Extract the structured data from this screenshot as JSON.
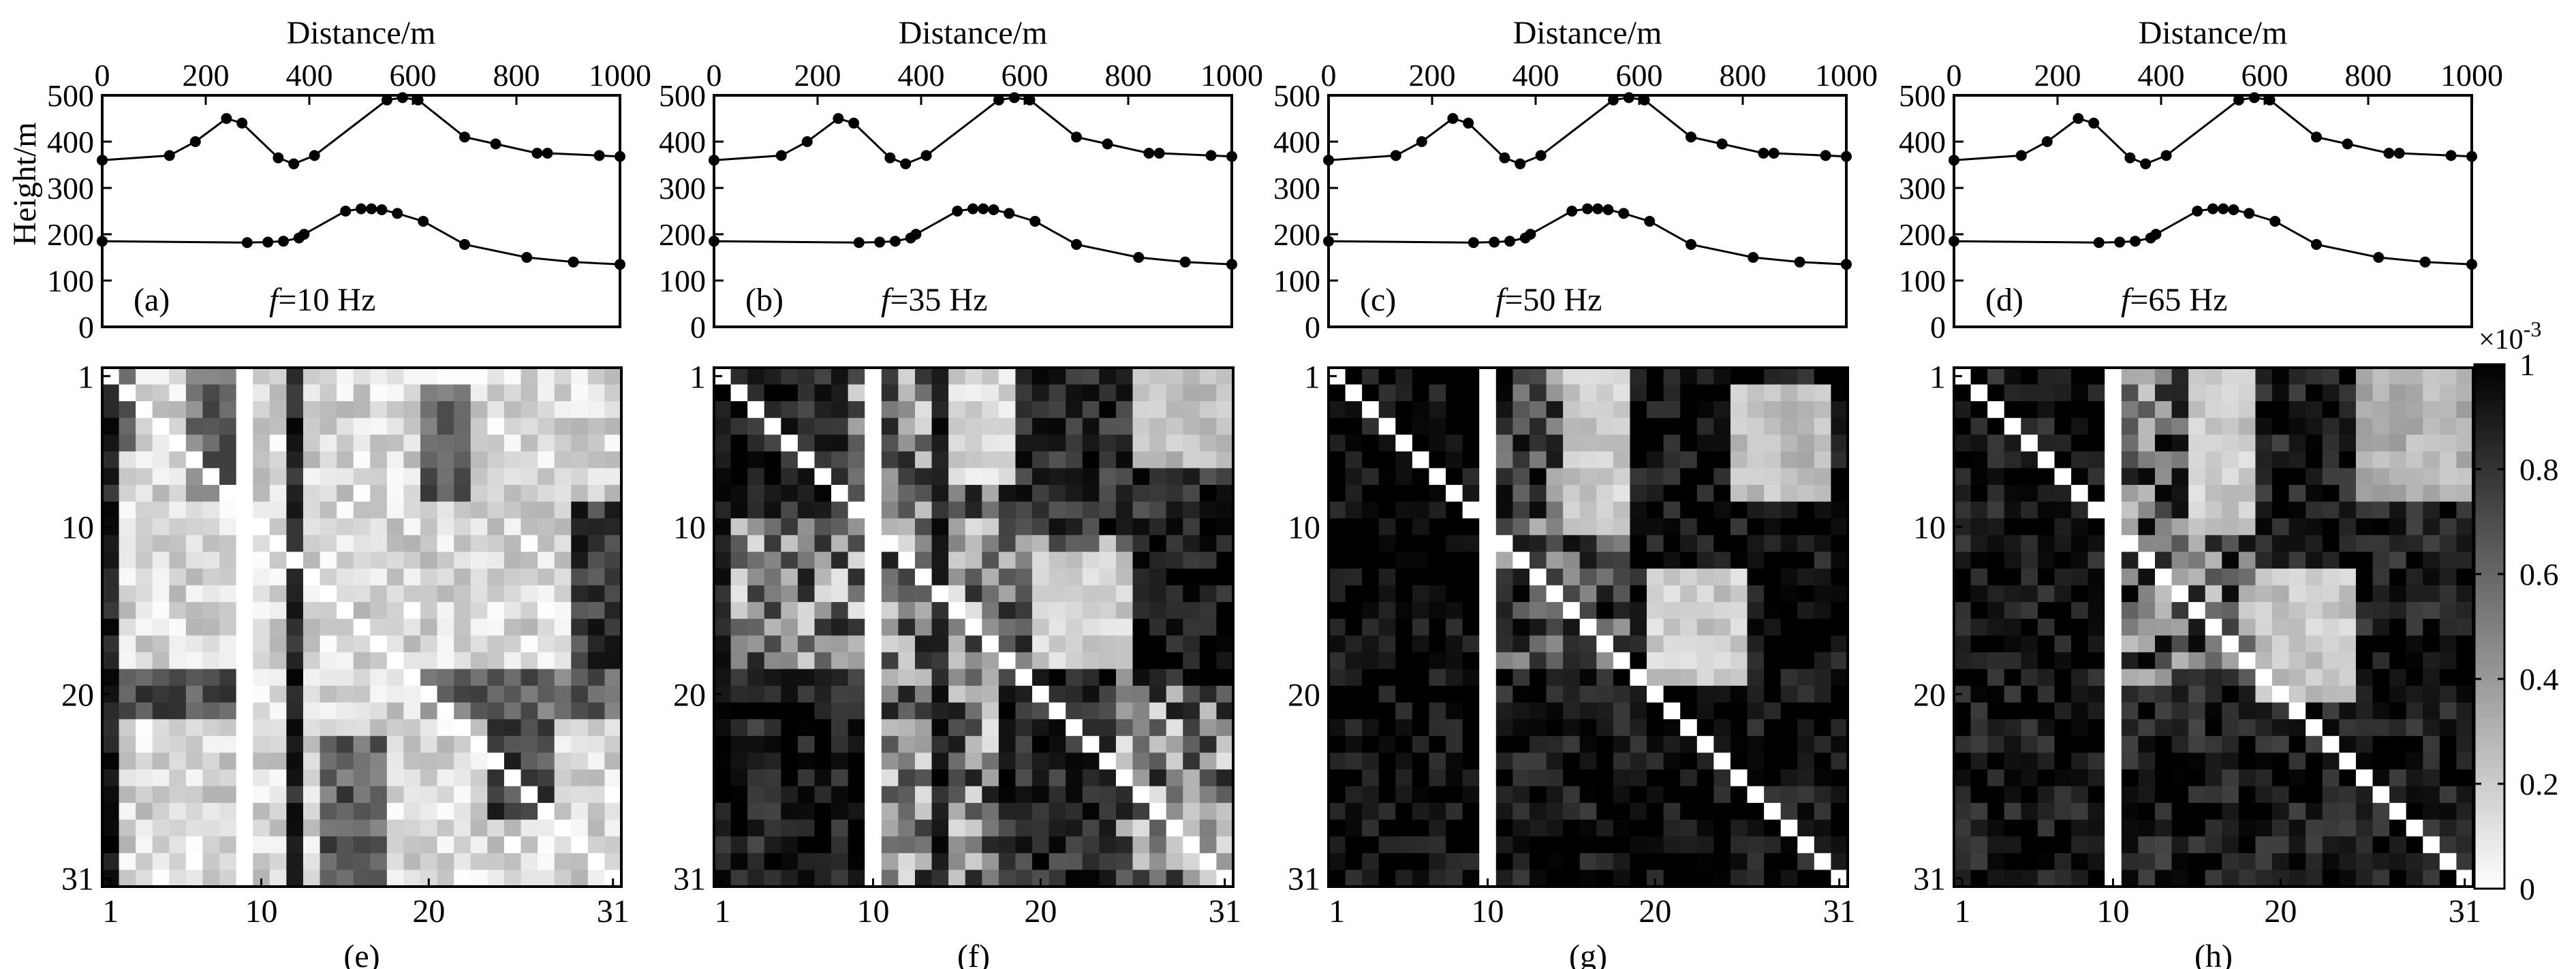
{
  "figure": {
    "x_axis_label": "Distance/m",
    "y_axis_label": "Height/m",
    "profile_x_ticks": [
      "0",
      "200",
      "400",
      "600",
      "800",
      "1000"
    ],
    "profile_y_ticks": [
      "0",
      "100",
      "200",
      "300",
      "400",
      "500"
    ],
    "matrix_ticks": [
      "1",
      "10",
      "20",
      "31"
    ],
    "colorbar": {
      "exponent_label": "×10",
      "exponent_power": "-3",
      "ticks": [
        "0",
        "0.2",
        "0.4",
        "0.6",
        "0.8",
        "1"
      ],
      "range": [
        0,
        1
      ],
      "colormap": "white-to-black",
      "low_color": "#ffffff",
      "high_color": "#000000"
    }
  },
  "chart_data": [
    {
      "type": "line",
      "panel": "(a)",
      "freq_prefix": "f",
      "freq_value": "=10 Hz",
      "xlim": [
        0,
        1000
      ],
      "ylim": [
        0,
        500
      ],
      "series": [
        {
          "x": [
            0,
            130,
            180,
            240,
            270,
            340,
            370,
            410,
            550,
            580,
            610,
            700,
            760,
            840,
            860,
            960,
            1000
          ],
          "y": [
            360,
            370,
            400,
            450,
            440,
            365,
            352,
            370,
            490,
            495,
            490,
            410,
            395,
            375,
            375,
            370,
            368
          ]
        },
        {
          "x": [
            0,
            280,
            320,
            350,
            380,
            390,
            470,
            500,
            520,
            540,
            570,
            620,
            700,
            820,
            910,
            1000
          ],
          "y": [
            185,
            182,
            183,
            185,
            192,
            200,
            250,
            255,
            255,
            253,
            245,
            228,
            178,
            150,
            140,
            135
          ]
        }
      ]
    },
    {
      "type": "line",
      "panel": "(b)",
      "freq_prefix": "f",
      "freq_value": "=35 Hz",
      "xlim": [
        0,
        1000
      ],
      "ylim": [
        0,
        500
      ],
      "series": [
        {
          "x": [
            0,
            130,
            180,
            240,
            270,
            340,
            370,
            410,
            550,
            580,
            610,
            700,
            760,
            840,
            860,
            960,
            1000
          ],
          "y": [
            360,
            370,
            400,
            450,
            440,
            365,
            352,
            370,
            490,
            495,
            490,
            410,
            395,
            375,
            375,
            370,
            368
          ]
        },
        {
          "x": [
            0,
            280,
            320,
            350,
            380,
            390,
            470,
            500,
            520,
            540,
            570,
            620,
            700,
            820,
            910,
            1000
          ],
          "y": [
            185,
            182,
            183,
            185,
            192,
            200,
            250,
            255,
            255,
            253,
            245,
            228,
            178,
            150,
            140,
            135
          ]
        }
      ]
    },
    {
      "type": "line",
      "panel": "(c)",
      "freq_prefix": "f",
      "freq_value": "=50 Hz",
      "xlim": [
        0,
        1000
      ],
      "ylim": [
        0,
        500
      ],
      "series": [
        {
          "x": [
            0,
            130,
            180,
            240,
            270,
            340,
            370,
            410,
            550,
            580,
            610,
            700,
            760,
            840,
            860,
            960,
            1000
          ],
          "y": [
            360,
            370,
            400,
            450,
            440,
            365,
            352,
            370,
            490,
            495,
            490,
            410,
            395,
            375,
            375,
            370,
            368
          ]
        },
        {
          "x": [
            0,
            280,
            320,
            350,
            380,
            390,
            470,
            500,
            520,
            540,
            570,
            620,
            700,
            820,
            910,
            1000
          ],
          "y": [
            185,
            182,
            183,
            185,
            192,
            200,
            250,
            255,
            255,
            253,
            245,
            228,
            178,
            150,
            140,
            135
          ]
        }
      ]
    },
    {
      "type": "line",
      "panel": "(d)",
      "freq_prefix": "f",
      "freq_value": "=65 Hz",
      "xlim": [
        0,
        1000
      ],
      "ylim": [
        0,
        500
      ],
      "series": [
        {
          "x": [
            0,
            130,
            180,
            240,
            270,
            340,
            370,
            410,
            550,
            580,
            610,
            700,
            760,
            840,
            860,
            960,
            1000
          ],
          "y": [
            360,
            370,
            400,
            450,
            440,
            365,
            352,
            370,
            490,
            495,
            490,
            410,
            395,
            375,
            375,
            370,
            368
          ]
        },
        {
          "x": [
            0,
            280,
            320,
            350,
            380,
            390,
            470,
            500,
            520,
            540,
            570,
            620,
            700,
            820,
            910,
            1000
          ],
          "y": [
            185,
            182,
            183,
            185,
            192,
            200,
            250,
            255,
            255,
            253,
            245,
            228,
            178,
            150,
            140,
            135
          ]
        }
      ]
    },
    {
      "type": "heatmap",
      "panel": "(e)",
      "size": 31,
      "value_scale": 0.001,
      "zlim": [
        0,
        1
      ],
      "diagonal_value": 0,
      "white_columns": [
        9
      ],
      "dark_columns": [
        1,
        12
      ],
      "dark_regions": [
        {
          "rows": [
            1,
            5
          ],
          "cols": [
            1,
            2
          ],
          "value": 0.7
        },
        {
          "rows": [
            1,
            8
          ],
          "cols": [
            6,
            8
          ],
          "value": 0.55
        },
        {
          "rows": [
            2,
            8
          ],
          "cols": [
            20,
            22
          ],
          "value": 0.6
        },
        {
          "rows": [
            9,
            18
          ],
          "cols": [
            29,
            31
          ],
          "value": 0.75
        },
        {
          "rows": [
            19,
            21
          ],
          "cols": [
            1,
            8
          ],
          "value": 0.65
        },
        {
          "rows": [
            19,
            21
          ],
          "cols": [
            20,
            31
          ],
          "value": 0.55
        },
        {
          "rows": [
            22,
            27
          ],
          "cols": [
            24,
            27
          ],
          "value": 0.7
        },
        {
          "rows": [
            23,
            31
          ],
          "cols": [
            14,
            17
          ],
          "value": 0.6
        }
      ],
      "background_range": [
        0,
        0.3
      ]
    },
    {
      "type": "heatmap",
      "panel": "(f)",
      "size": 31,
      "value_scale": 0.001,
      "zlim": [
        0,
        1
      ],
      "diagonal_value": 0,
      "white_columns": [
        10
      ],
      "dark_columns": [
        1,
        14
      ],
      "dark_regions": [
        {
          "rows": [
            1,
            9
          ],
          "cols": [
            1,
            8
          ],
          "value": 0.85
        },
        {
          "rows": [
            1,
            10
          ],
          "cols": [
            18,
            31
          ],
          "value": 0.8
        },
        {
          "rows": [
            10,
            19
          ],
          "cols": [
            26,
            31
          ],
          "value": 0.9
        },
        {
          "rows": [
            19,
            31
          ],
          "cols": [
            1,
            9
          ],
          "value": 0.85
        },
        {
          "rows": [
            19,
            31
          ],
          "cols": [
            18,
            24
          ],
          "value": 0.8
        }
      ],
      "light_regions": [
        {
          "rows": [
            1,
            7
          ],
          "cols": [
            15,
            18
          ],
          "value": 0.05
        },
        {
          "rows": [
            12,
            18
          ],
          "cols": [
            20,
            25
          ],
          "value": 0.08
        },
        {
          "rows": [
            1,
            6
          ],
          "cols": [
            26,
            31
          ],
          "value": 0.15
        }
      ],
      "background_range": [
        0.1,
        0.9
      ]
    },
    {
      "type": "heatmap",
      "panel": "(g)",
      "size": 31,
      "value_scale": 0.001,
      "zlim": [
        0,
        1
      ],
      "diagonal_value": 0,
      "white_columns": [
        10
      ],
      "dark_columns": [],
      "dark_regions": [
        {
          "rows": [
            1,
            31
          ],
          "cols": [
            1,
            9
          ],
          "value": 0.95
        },
        {
          "rows": [
            1,
            31
          ],
          "cols": [
            19,
            31
          ],
          "value": 0.92
        },
        {
          "rows": [
            19,
            31
          ],
          "cols": [
            11,
            18
          ],
          "value": 0.9
        }
      ],
      "light_regions": [
        {
          "rows": [
            1,
            10
          ],
          "cols": [
            15,
            18
          ],
          "value": 0.1
        },
        {
          "rows": [
            2,
            8
          ],
          "cols": [
            25,
            30
          ],
          "value": 0.15
        },
        {
          "rows": [
            13,
            19
          ],
          "cols": [
            20,
            25
          ],
          "value": 0.1
        }
      ],
      "background_range": [
        0.3,
        1
      ]
    },
    {
      "type": "heatmap",
      "panel": "(h)",
      "size": 31,
      "value_scale": 0.001,
      "zlim": [
        0,
        1
      ],
      "diagonal_value": 0,
      "white_columns": [
        10
      ],
      "dark_columns": [],
      "dark_regions": [
        {
          "rows": [
            1,
            31
          ],
          "cols": [
            1,
            9
          ],
          "value": 0.9
        },
        {
          "rows": [
            1,
            31
          ],
          "cols": [
            19,
            31
          ],
          "value": 0.88
        },
        {
          "rows": [
            20,
            31
          ],
          "cols": [
            11,
            18
          ],
          "value": 0.85
        }
      ],
      "light_regions": [
        {
          "rows": [
            1,
            10
          ],
          "cols": [
            15,
            18
          ],
          "value": 0.1
        },
        {
          "rows": [
            1,
            8
          ],
          "cols": [
            25,
            31
          ],
          "value": 0.2
        },
        {
          "rows": [
            13,
            20
          ],
          "cols": [
            19,
            24
          ],
          "value": 0.12
        }
      ],
      "background_range": [
        0.2,
        1
      ]
    }
  ]
}
